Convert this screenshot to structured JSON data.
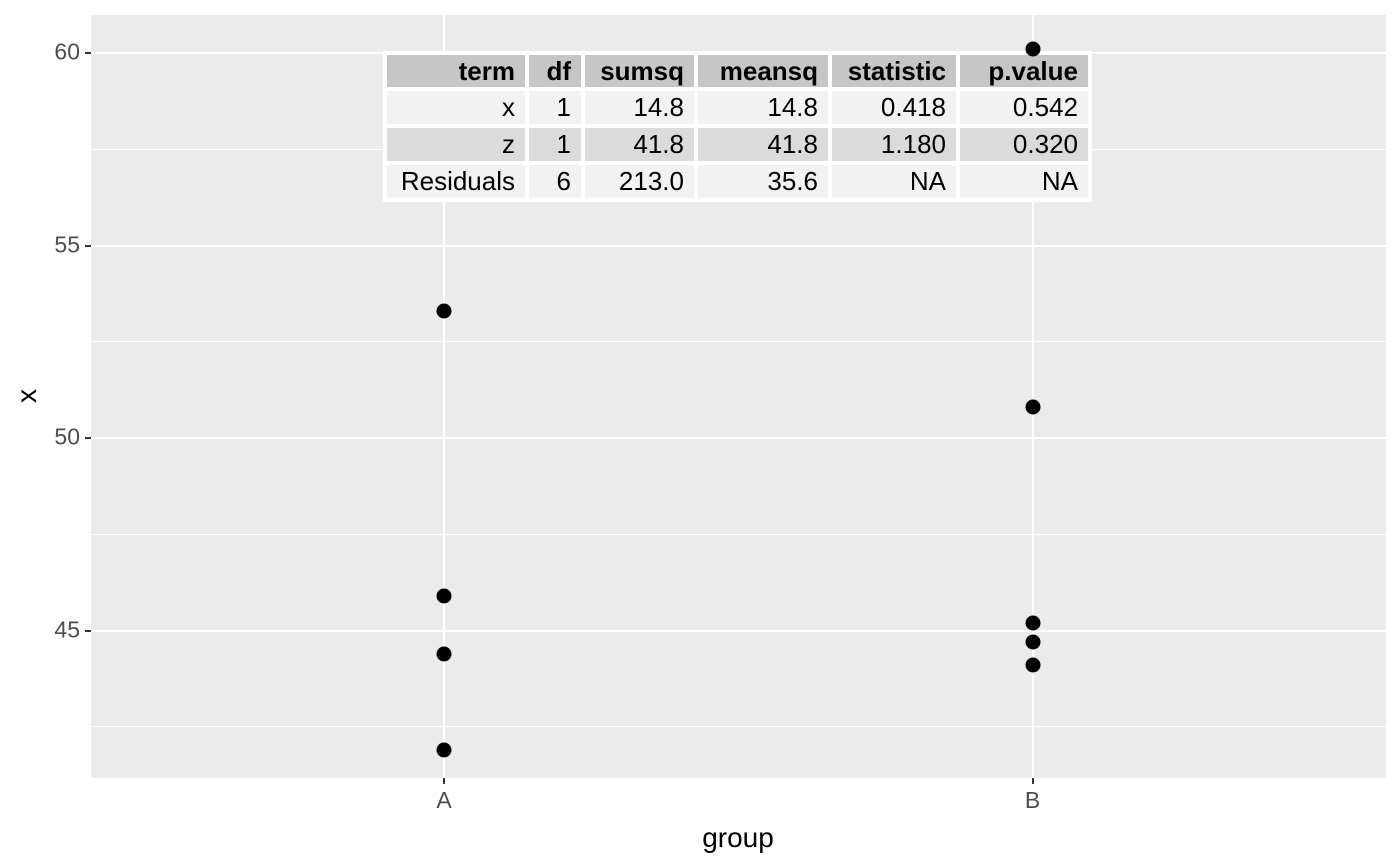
{
  "chart_data": {
    "type": "scatter",
    "title": "",
    "xlabel": "group",
    "ylabel": "x",
    "categories": [
      "A",
      "B"
    ],
    "series": [
      {
        "name": "A",
        "values": [
          53.3,
          45.9,
          44.4,
          41.9
        ]
      },
      {
        "name": "B",
        "values": [
          60.1,
          50.8,
          45.2,
          44.7,
          44.1
        ]
      }
    ],
    "y_axis": {
      "ticks": [
        60,
        55,
        50,
        45
      ],
      "minor_ticks": [
        57.5,
        52.5,
        47.5,
        42.5
      ],
      "ylim": [
        41.2,
        61.0
      ]
    },
    "grid": "on",
    "legend": "none",
    "colors": {
      "panel_bg": "#EBEBEB",
      "grid": "#FFFFFF",
      "point": "#000000",
      "axis_text": "#4D4D4D",
      "axis_title": "#000000",
      "table_header_bg": "#C6C6C6",
      "table_row_odd_bg": "#F2F2F2",
      "table_row_even_bg": "#DBDBDB"
    },
    "annotation_table": {
      "columns": [
        "term",
        "df",
        "sumsq",
        "meansq",
        "statistic",
        "p.value"
      ],
      "rows": [
        {
          "cells": [
            "x",
            "1",
            "14.8",
            "14.8",
            "0.418",
            "0.542"
          ]
        },
        {
          "cells": [
            "z",
            "1",
            "41.8",
            "41.8",
            "1.180",
            "0.320"
          ]
        },
        {
          "cells": [
            "Residuals",
            "6",
            "213.0",
            "35.6",
            "NA",
            "NA"
          ]
        }
      ]
    }
  }
}
